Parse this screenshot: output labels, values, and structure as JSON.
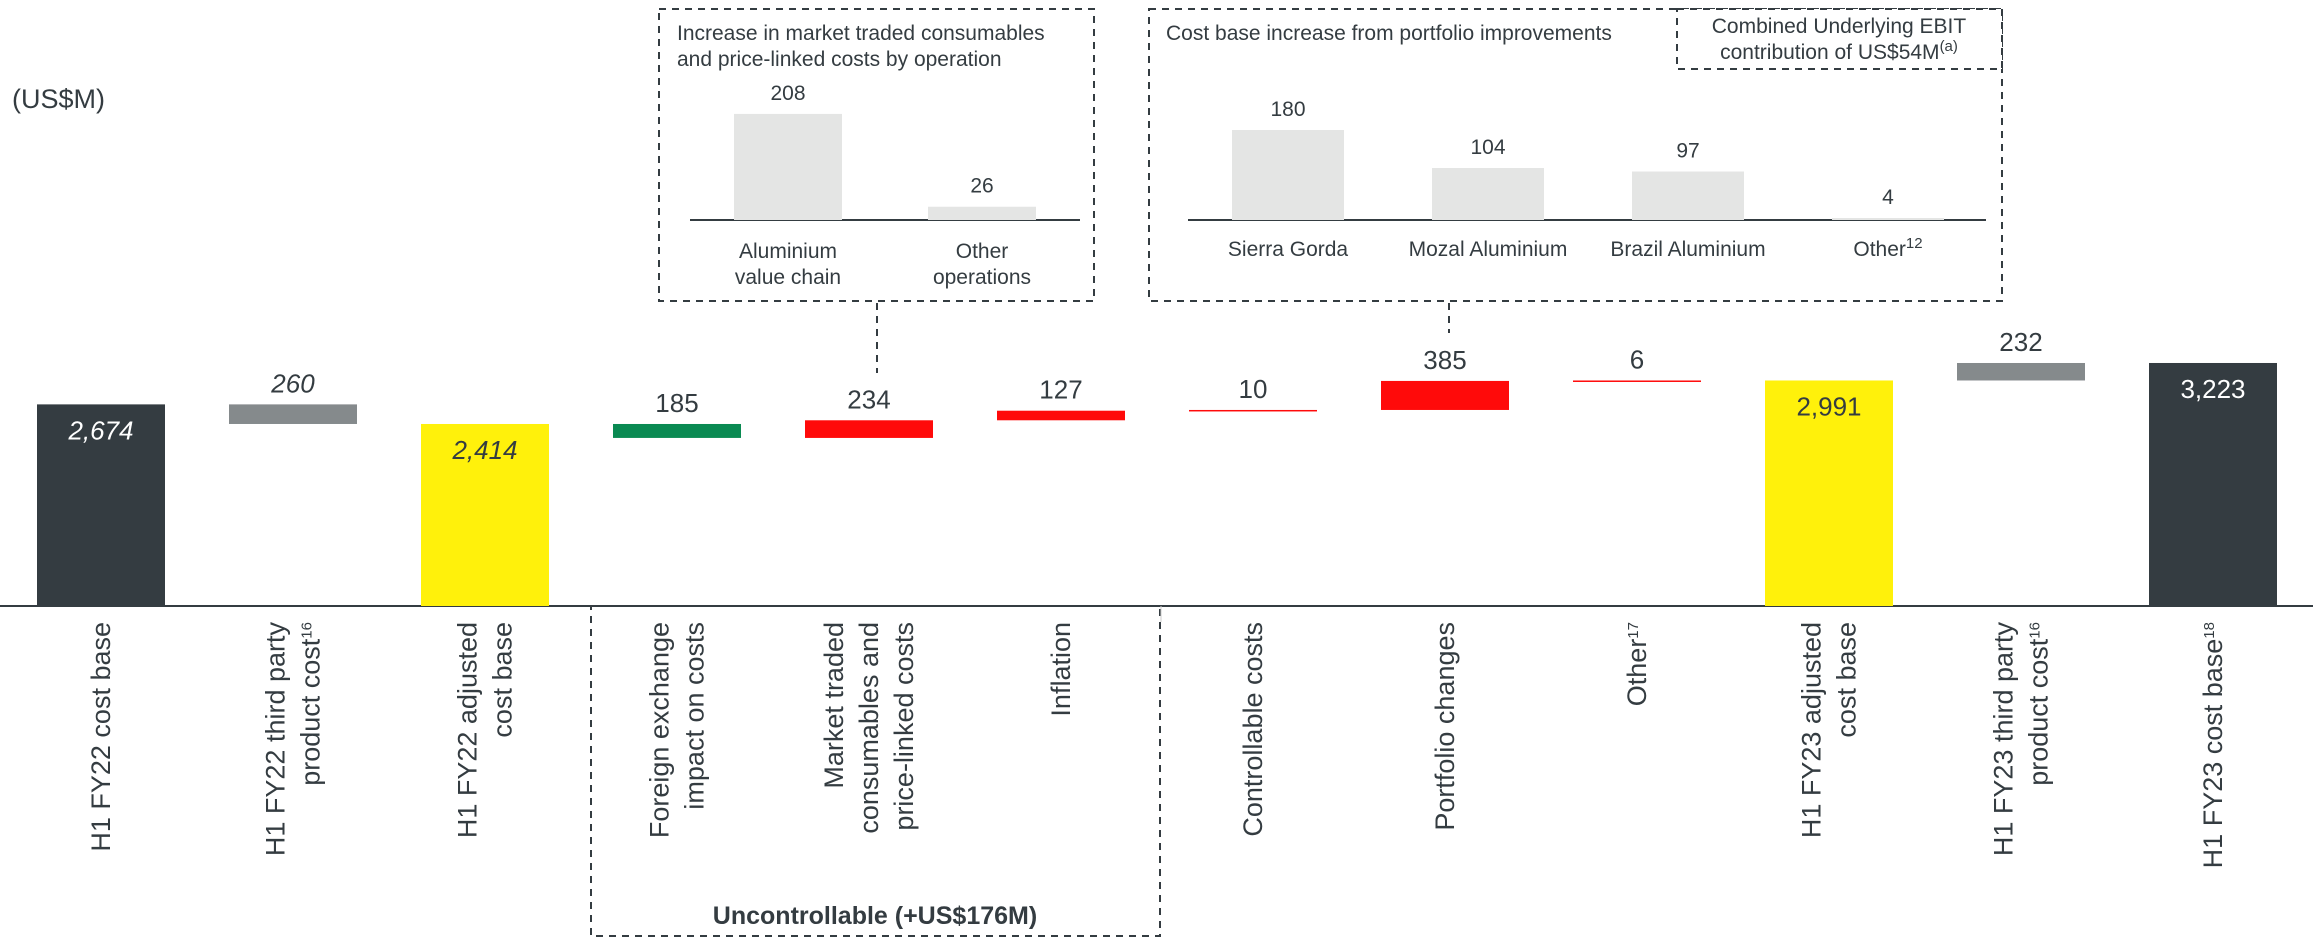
{
  "unit_label": "(US$M)",
  "chart_data": {
    "type": "bar",
    "subtype": "waterfall",
    "categories": [
      {
        "lines": [
          "H1 FY22 cost base"
        ],
        "sup": ""
      },
      {
        "lines": [
          "H1 FY22 third party",
          "product cost"
        ],
        "sup": "16"
      },
      {
        "lines": [
          "H1 FY22 adjusted",
          "cost base"
        ],
        "sup": ""
      },
      {
        "lines": [
          "Foreign exchange",
          "impact on costs"
        ],
        "sup": ""
      },
      {
        "lines": [
          "Market traded",
          "consumables and",
          "price-linked costs"
        ],
        "sup": ""
      },
      {
        "lines": [
          "Inflation"
        ],
        "sup": ""
      },
      {
        "lines": [
          "Controllable costs"
        ],
        "sup": ""
      },
      {
        "lines": [
          "Portfolio changes"
        ],
        "sup": ""
      },
      {
        "lines": [
          "Other"
        ],
        "sup": "17"
      },
      {
        "lines": [
          "H1 FY23 adjusted",
          "cost base"
        ],
        "sup": ""
      },
      {
        "lines": [
          "H1 FY23 third party",
          "product cost"
        ],
        "sup": "16"
      },
      {
        "lines": [
          "H1 FY23 cost base"
        ],
        "sup": "18"
      }
    ],
    "bars": [
      {
        "label": "2,674",
        "base": 0,
        "top": 2674,
        "color": "#343c41",
        "label_pos": "inside",
        "label_color": "#ffffff",
        "italic": true
      },
      {
        "label": "260",
        "base": 2414,
        "top": 2674,
        "color": "#858a8c",
        "label_pos": "above",
        "label_color": "#343c41",
        "italic": true
      },
      {
        "label": "2,414",
        "base": 0,
        "top": 2414,
        "color": "#fff10b",
        "label_pos": "inside",
        "label_color": "#343c41",
        "italic": true
      },
      {
        "label": "185",
        "base": 2229,
        "top": 2414,
        "color": "#0a8a52",
        "label_pos": "above",
        "label_color": "#343c41",
        "italic": false
      },
      {
        "label": "234",
        "base": 2229,
        "top": 2463,
        "color": "#ff0a0a",
        "label_pos": "above",
        "label_color": "#343c41",
        "italic": false
      },
      {
        "label": "127",
        "base": 2463,
        "top": 2590,
        "color": "#ff0a0a",
        "label_pos": "above",
        "label_color": "#343c41",
        "italic": false
      },
      {
        "label": "10",
        "base": 2590,
        "top": 2600,
        "color": "#ff0a0a",
        "label_pos": "above",
        "label_color": "#343c41",
        "italic": false
      },
      {
        "label": "385",
        "base": 2600,
        "top": 2985,
        "color": "#ff0a0a",
        "label_pos": "above",
        "label_color": "#343c41",
        "italic": false
      },
      {
        "label": "6",
        "base": 2985,
        "top": 2991,
        "color": "#ff0a0a",
        "label_pos": "above",
        "label_color": "#343c41",
        "italic": false
      },
      {
        "label": "2,991",
        "base": 0,
        "top": 2991,
        "color": "#fff10b",
        "label_pos": "inside",
        "label_color": "#343c41",
        "italic": false
      },
      {
        "label": "232",
        "base": 2991,
        "top": 3223,
        "color": "#858a8c",
        "label_pos": "above",
        "label_color": "#343c41",
        "italic": false
      },
      {
        "label": "3,223",
        "base": 0,
        "top": 3223,
        "color": "#343c41",
        "label_pos": "inside",
        "label_color": "#ffffff",
        "italic": false
      }
    ],
    "group_label": "Uncontrollable (+US$176M)",
    "insets": [
      {
        "title_lines": [
          "Increase in market traded consumables",
          "and price-linked costs by operation"
        ],
        "bars": [
          {
            "value": 208,
            "label": "208",
            "name_lines": [
              "Aluminium",
              "value chain"
            ],
            "sup": ""
          },
          {
            "value": 26,
            "label": "26",
            "name_lines": [
              "Other",
              "operations"
            ],
            "sup": ""
          }
        ]
      },
      {
        "title_lines": [
          "Cost base increase from portfolio improvements"
        ],
        "note_lines": [
          "Combined Underlying EBIT",
          "contribution of US$54M"
        ],
        "note_sup": "(a)",
        "bars": [
          {
            "value": 180,
            "label": "180",
            "name_lines": [
              "Sierra Gorda"
            ],
            "sup": ""
          },
          {
            "value": 104,
            "label": "104",
            "name_lines": [
              "Mozal Aluminium"
            ],
            "sup": ""
          },
          {
            "value": 97,
            "label": "97",
            "name_lines": [
              "Brazil Aluminium"
            ],
            "sup": ""
          },
          {
            "value": 4,
            "label": "4",
            "name_lines": [
              "Other"
            ],
            "sup": "12"
          }
        ]
      }
    ],
    "colors": {
      "text": "#343c41",
      "inset_bar": "#e4e5e4",
      "dash": "#343c41"
    }
  }
}
